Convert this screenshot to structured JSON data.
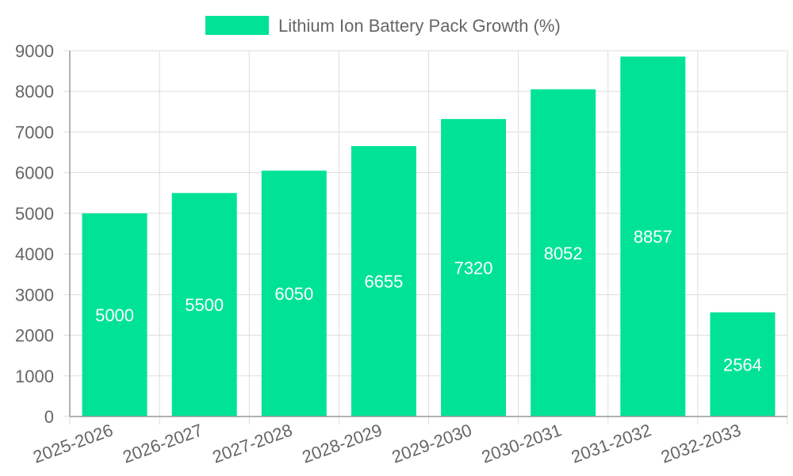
{
  "chart_data": {
    "type": "bar",
    "categories": [
      "2025-2026",
      "2026-2027",
      "2027-2028",
      "2028-2029",
      "2029-2030",
      "2030-2031",
      "2031-2032",
      "2032-2033"
    ],
    "series": [
      {
        "name": "Lithium Ion Battery Pack Growth (%)",
        "values": [
          5000,
          5500,
          6050,
          6655,
          7320,
          8052,
          8857,
          2564
        ],
        "color": "#00e396"
      }
    ],
    "ylim": [
      0,
      9000
    ],
    "yticks": [
      0,
      1000,
      2000,
      3000,
      4000,
      5000,
      6000,
      7000,
      8000,
      9000
    ],
    "grid": true,
    "legend_position": "top",
    "data_labels": true,
    "x_tick_rotation": "rotated"
  },
  "colors": {
    "bar": "#00e396",
    "grid": "#dddddd",
    "axis": "#999999",
    "tick_text": "#666666",
    "data_label": "#ffffff",
    "legend_text": "#666666"
  }
}
